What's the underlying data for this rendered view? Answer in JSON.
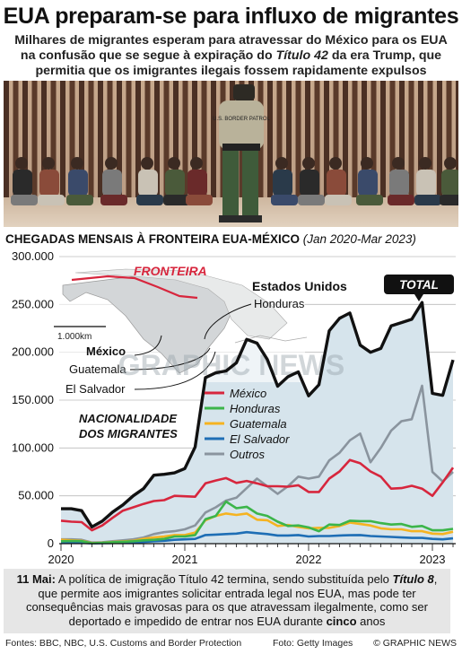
{
  "title": "EUA preparam-se para influxo de migrantes",
  "subtitle": {
    "part1": "Milhares de migrantes esperam para atravessar do México para os EUA na confusão que se segue à expiração do ",
    "emph": "Título 42",
    "part2": " da era Trump, que permitia que os imigrantes ilegais fossem rapidamente expulsos"
  },
  "photo": {
    "patrol_badge": "U.S. BORDER PATROL"
  },
  "chart_title": {
    "main": "CHEGADAS MENSAIS À FRONTEIRA EUA-MÉXICO",
    "period": "(Jan 2020-Mar 2023)"
  },
  "map": {
    "border_label": "FRONTEIRA",
    "scale": "1.000km",
    "countries": [
      "Estados Unidos",
      "Honduras",
      "México",
      "Guatemala",
      "El Salvador"
    ]
  },
  "legend_title": [
    "NACIONALIDADE",
    "DOS MIGRANTES"
  ],
  "total_label": "TOTAL",
  "watermark": "GRAPHIC NEWS",
  "colors": {
    "total": "#111111",
    "mexico": "#d7263d",
    "honduras": "#3cb54a",
    "guatemala": "#f5b321",
    "el_salvador": "#1e6eb5",
    "outros": "#8a949e",
    "area": "#d6e4ec"
  },
  "chart_data": {
    "type": "line",
    "title": "CHEGADAS MENSAIS À FRONTEIRA EUA-MÉXICO (Jan 2020-Mar 2023)",
    "x": [
      "2020-01",
      "2020-02",
      "2020-03",
      "2020-04",
      "2020-05",
      "2020-06",
      "2020-07",
      "2020-08",
      "2020-09",
      "2020-10",
      "2020-11",
      "2020-12",
      "2021-01",
      "2021-02",
      "2021-03",
      "2021-04",
      "2021-05",
      "2021-06",
      "2021-07",
      "2021-08",
      "2021-09",
      "2021-10",
      "2021-11",
      "2021-12",
      "2022-01",
      "2022-02",
      "2022-03",
      "2022-04",
      "2022-05",
      "2022-06",
      "2022-07",
      "2022-08",
      "2022-09",
      "2022-10",
      "2022-11",
      "2022-12",
      "2023-01",
      "2023-02",
      "2023-03"
    ],
    "x_ticks": [
      "2020",
      "2021",
      "2022",
      "2023"
    ],
    "y_ticks": [
      "0",
      "50.000",
      "100.000",
      "150.000",
      "200.000",
      "250.000",
      "300.000"
    ],
    "ylim": [
      0,
      300000
    ],
    "series": [
      {
        "name": "TOTAL",
        "values": [
          36500,
          36500,
          34500,
          17500,
          23500,
          33000,
          40500,
          50000,
          57500,
          71500,
          72500,
          74000,
          78500,
          101000,
          173500,
          178500,
          180500,
          189000,
          213500,
          209500,
          192500,
          164500,
          174500,
          179500,
          154500,
          166000,
          222500,
          235500,
          241000,
          207500,
          200000,
          204000,
          227500,
          231000,
          234500,
          252000,
          157000,
          155000,
          192000
        ]
      },
      {
        "name": "México",
        "values": [
          24000,
          23000,
          22500,
          14000,
          19000,
          27000,
          34500,
          38000,
          41500,
          44500,
          45500,
          50000,
          49500,
          49000,
          63000,
          66000,
          68500,
          63500,
          65500,
          63000,
          60000,
          60000,
          59500,
          61000,
          54000,
          54000,
          68000,
          75500,
          87500,
          84000,
          75500,
          70000,
          57500,
          58000,
          60500,
          57500,
          50000,
          64000,
          79500
        ]
      },
      {
        "name": "Honduras",
        "values": [
          2500,
          2800,
          2600,
          500,
          800,
          1500,
          2000,
          2500,
          3500,
          4000,
          5000,
          7500,
          7500,
          9000,
          25500,
          29000,
          44000,
          37000,
          38500,
          31500,
          29000,
          23000,
          18500,
          19000,
          17000,
          13000,
          20000,
          19500,
          24000,
          23500,
          23500,
          21500,
          20000,
          20500,
          17500,
          18500,
          14000,
          14000,
          15500
        ]
      },
      {
        "name": "Guatemala",
        "values": [
          4000,
          3500,
          3000,
          700,
          1000,
          1700,
          2300,
          3000,
          5000,
          6500,
          7500,
          9000,
          9000,
          11500,
          24500,
          29000,
          31500,
          30000,
          31500,
          25000,
          24500,
          18500,
          19500,
          17500,
          16000,
          16500,
          16500,
          18500,
          22000,
          20500,
          19000,
          16000,
          15000,
          15000,
          13000,
          13000,
          10500,
          10000,
          12500
        ]
      },
      {
        "name": "El Salvador",
        "values": [
          900,
          1000,
          1000,
          300,
          500,
          700,
          1000,
          1200,
          1800,
          2500,
          3000,
          4000,
          4500,
          5000,
          9000,
          9500,
          10000,
          10500,
          12000,
          11000,
          10000,
          8500,
          8500,
          9000,
          7500,
          8000,
          8000,
          8500,
          8800,
          9000,
          8000,
          7500,
          7000,
          6500,
          6000,
          6000,
          5000,
          4500,
          5500
        ]
      },
      {
        "name": "Outros",
        "values": [
          4500,
          4500,
          4000,
          1200,
          1500,
          2500,
          3500,
          4500,
          6500,
          10000,
          12000,
          13000,
          15000,
          19000,
          32500,
          38000,
          45000,
          48000,
          58000,
          68000,
          60000,
          52000,
          60000,
          70000,
          68000,
          70000,
          87000,
          95000,
          108000,
          115000,
          85000,
          100000,
          118000,
          128000,
          130000,
          165000,
          75000,
          65000,
          75000
        ]
      }
    ]
  },
  "note": {
    "lead": "11 Mai:",
    "p1": " A política de imigração Título 42 termina, sendo substituída pelo ",
    "emph": "Título 8",
    "p2": ", que permite aos imigrantes solicitar entrada legal nos EUA, mas pode ter consequências mais gravosas para os que atravessam ilegalmente, como ser deportado e impedido de entrar nos EUA durante ",
    "bold": "cinco",
    "p3": " anos"
  },
  "footer": {
    "sources": "Fontes: BBC, NBC, U.S. Customs and Border Protection",
    "photo": "Foto: Getty Images",
    "brand": "© GRAPHIC NEWS"
  }
}
